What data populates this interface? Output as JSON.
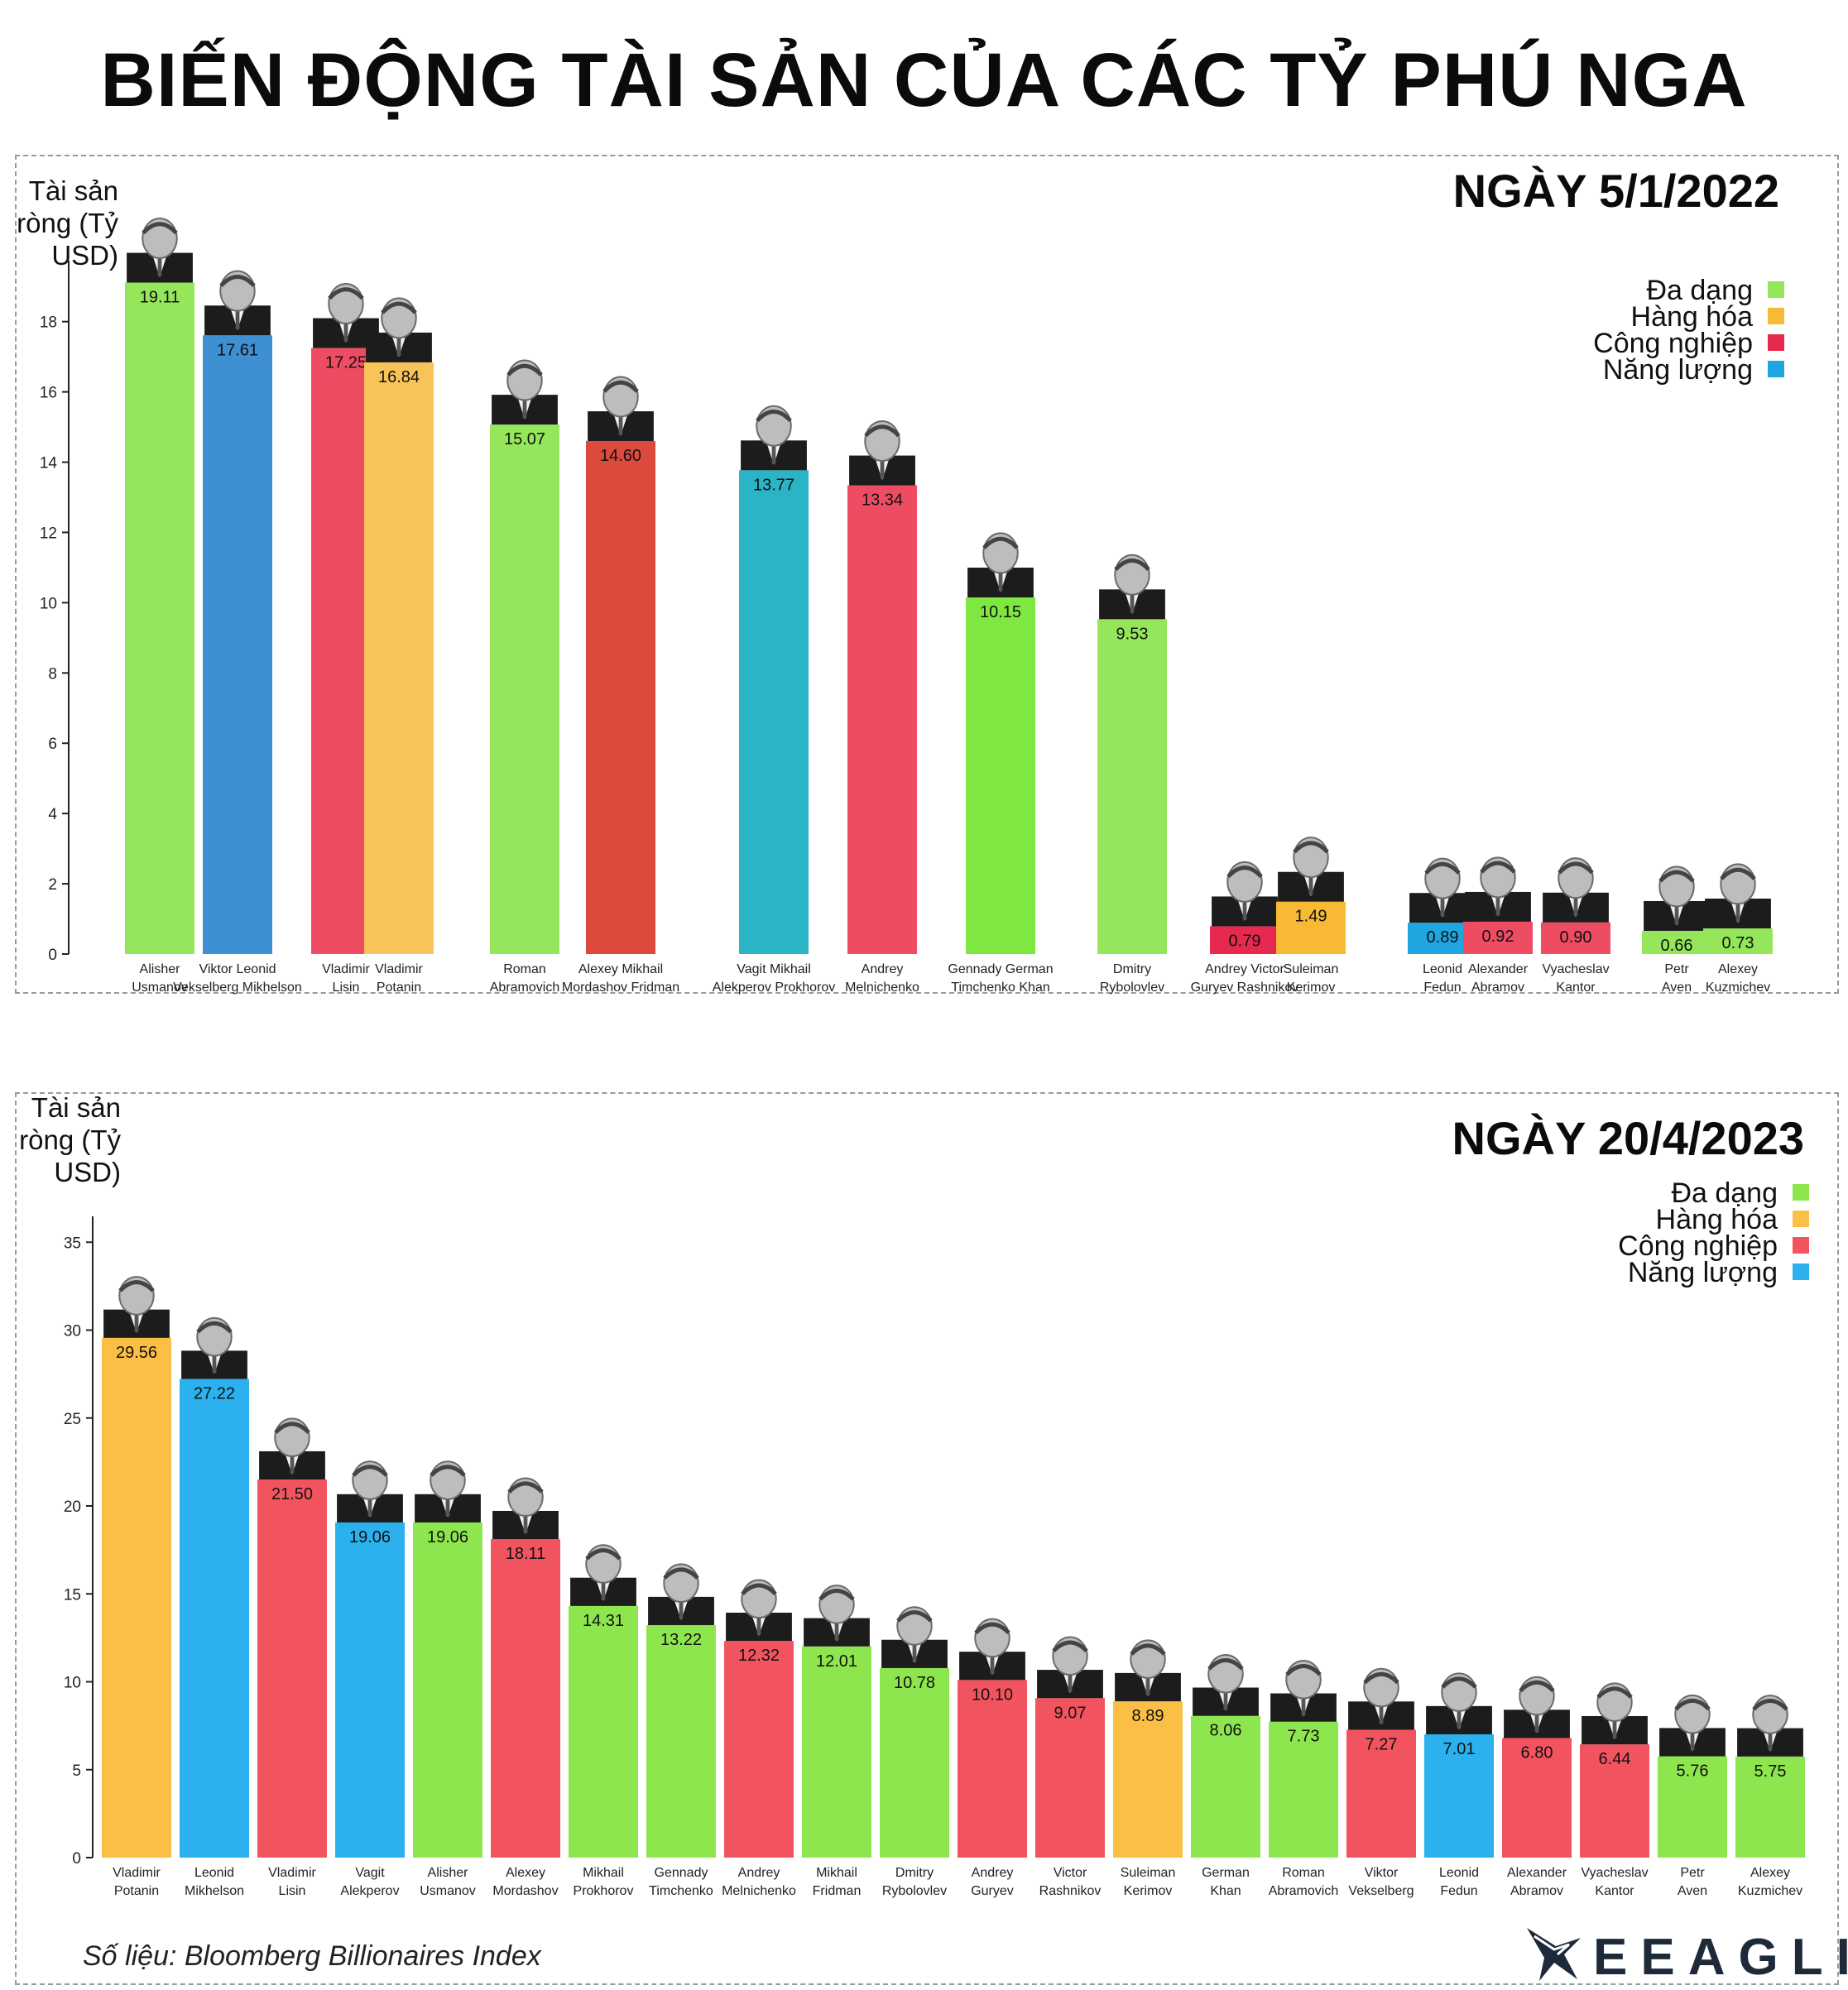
{
  "title": "BIẾN ĐỘNG TÀI SẢN CỦA CÁC TỶ PHÚ NGA",
  "source_note": "Số liệu: Bloomberg Billionaires Index",
  "logo": {
    "text": "EEAGLI",
    "icon": "eagle-logo-icon"
  },
  "colors": {
    "Đa dạng": "#8ee64e",
    "Hàng hóa": "#fbbf45",
    "Công nghiệp": "#f2545f",
    "Năng lượng": "#2cb1ef"
  },
  "legend_colors_panel1": {
    "Đa dạng": "#95e65a",
    "Hàng hóa": "#f8b934",
    "Công nghiệp": "#e8294f",
    "Năng lượng": "#1fa5df"
  },
  "chart_data": [
    {
      "type": "bar",
      "title": "NGÀY 5/1/2022",
      "ylabel": "Tài sản ròng (Tỷ USD)",
      "ylim": [
        0,
        19.5
      ],
      "yticks": [
        0,
        2,
        4,
        6,
        8,
        10,
        12,
        14,
        16,
        18
      ],
      "legend": [
        "Đa dạng",
        "Hàng hóa",
        "Công nghiệp",
        "Năng lượng"
      ],
      "legend_placement": "top-right",
      "grid": false,
      "bars": [
        {
          "name": "Alisher Usmanov",
          "label_lines": [
            "Alisher",
            "Usmanov"
          ],
          "value": 19.11,
          "value_label": "19.11",
          "sector": "Đa dạng",
          "color": "#95e65a"
        },
        {
          "name": "Viktor Vekselberg / Leonid Mikhelson",
          "label_lines": [
            "Viktor Leonid",
            "Vekselberg Mikhelson"
          ],
          "value": 17.61,
          "value_label": "17.61",
          "sector": "Năng lượng",
          "color": "#3f8fd3"
        },
        {
          "name": "Vladimir Lisin",
          "label_lines": [
            "Vladimir",
            "Lisin"
          ],
          "value": 17.25,
          "value_label": "17.25",
          "sector": "Công nghiệp",
          "color": "#ee4c63"
        },
        {
          "name": "Vladimir Potanin",
          "label_lines": [
            "Vladimir",
            "Potanin"
          ],
          "value": 16.84,
          "value_label": "16.84",
          "sector": "Hàng hóa",
          "color": "#f8c358"
        },
        {
          "name": "Roman Abramovich",
          "label_lines": [
            "Roman",
            "Abramovich"
          ],
          "value": 15.07,
          "value_label": "15.07",
          "sector": "Đa dạng",
          "color": "#95e65a"
        },
        {
          "name": "Alexey Mordashov / Mikhail Fridman",
          "label_lines": [
            "Alexey Mikhail",
            "Mordashov Fridman"
          ],
          "value": 14.6,
          "value_label": "14.60",
          "sector": "Công nghiệp",
          "color": "#dc4a3e"
        },
        {
          "name": "Vagit Alekperov / Mikhail Prokhorov",
          "label_lines": [
            "Vagit Mikhail",
            "Alekperov Prokhorov"
          ],
          "value": 13.77,
          "value_label": "13.77",
          "sector": "Năng lượng",
          "color": "#2bb3c6"
        },
        {
          "name": "Andrey Melnichenko",
          "label_lines": [
            "Andrey",
            "Melnichenko"
          ],
          "value": 13.34,
          "value_label": "13.34",
          "sector": "Công nghiệp",
          "color": "#ee4c63"
        },
        {
          "name": "Gennady Timchenko / German Khan",
          "label_lines": [
            "Gennady German",
            "Timchenko Khan"
          ],
          "value": 10.15,
          "value_label": "10.15",
          "sector": "Đa dạng",
          "color": "#7fe840"
        },
        {
          "name": "Dmitry Rybolovlev",
          "label_lines": [
            "Dmitry",
            "Rybolovlev"
          ],
          "value": 9.53,
          "value_label": "9.53",
          "sector": "Đa dạng",
          "color": "#95e65a"
        },
        {
          "name": "Andrey Guryev / Victor Rashnikov",
          "label_lines": [
            "Andrey Victor",
            "Guryev Rashnikov"
          ],
          "value": 0.79,
          "value_label": "0.79",
          "sector": "Công nghiệp",
          "color": "#e8294f"
        },
        {
          "name": "Suleiman Kerimov",
          "label_lines": [
            "Suleiman",
            "Kerimov"
          ],
          "value": 1.49,
          "value_label": "1.49",
          "sector": "Hàng hóa",
          "color": "#f8b934"
        },
        {
          "name": "Leonid Fedun",
          "label_lines": [
            "Leonid",
            "Fedun"
          ],
          "value": 0.89,
          "value_label": "0.89",
          "sector": "Năng lượng",
          "color": "#1fa5df"
        },
        {
          "name": "Alexander Abramov",
          "label_lines": [
            "Alexander",
            "Abramov"
          ],
          "value": 0.92,
          "value_label": "0.92",
          "sector": "Công nghiệp",
          "color": "#ee4c63"
        },
        {
          "name": "Vyacheslav Kantor",
          "label_lines": [
            "Vyacheslav",
            "Kantor"
          ],
          "value": 0.9,
          "value_label": "0.90",
          "sector": "Công nghiệp",
          "color": "#ee4c63"
        },
        {
          "name": "Petr Aven",
          "label_lines": [
            "Petr",
            "Aven"
          ],
          "value": 0.66,
          "value_label": "0.66",
          "sector": "Đa dạng",
          "color": "#95e65a"
        },
        {
          "name": "Alexey Kuzmichev",
          "label_lines": [
            "Alexey",
            "Kuzmichev"
          ],
          "value": 0.73,
          "value_label": "0.73",
          "sector": "Đa dạng",
          "color": "#95e65a"
        }
      ]
    },
    {
      "type": "bar",
      "title": "NGÀY 20/4/2023",
      "ylabel": "Tài sản ròng (Tỷ USD)",
      "ylim": [
        0,
        36
      ],
      "yticks": [
        0,
        5,
        10,
        15,
        20,
        25,
        30,
        35
      ],
      "legend": [
        "Đa dạng",
        "Hàng hóa",
        "Công nghiệp",
        "Năng lượng"
      ],
      "legend_placement": "top-right",
      "grid": false,
      "bars": [
        {
          "name": "Vladimir Potanin",
          "label_lines": [
            "Vladimir",
            "Potanin"
          ],
          "value": 29.56,
          "value_label": "29.56",
          "sector": "Hàng hóa"
        },
        {
          "name": "Leonid Mikhelson",
          "label_lines": [
            "Leonid",
            "Mikhelson"
          ],
          "value": 27.22,
          "value_label": "27.22",
          "sector": "Năng lượng"
        },
        {
          "name": "Vladimir Lisin",
          "label_lines": [
            "Vladimir",
            "Lisin"
          ],
          "value": 21.5,
          "value_label": "21.50",
          "sector": "Công nghiệp"
        },
        {
          "name": "Vagit Alekperov",
          "label_lines": [
            "Vagit",
            "Alekperov"
          ],
          "value": 19.06,
          "value_label": "19.06",
          "sector": "Năng lượng"
        },
        {
          "name": "Alisher Usmanov",
          "label_lines": [
            "Alisher",
            "Usmanov"
          ],
          "value": 19.06,
          "value_label": "19.06",
          "sector": "Đa dạng"
        },
        {
          "name": "Alexey Mordashov",
          "label_lines": [
            "Alexey",
            "Mordashov"
          ],
          "value": 18.11,
          "value_label": "18.11",
          "sector": "Công nghiệp"
        },
        {
          "name": "Mikhail Prokhorov",
          "label_lines": [
            "Mikhail",
            "Prokhorov"
          ],
          "value": 14.31,
          "value_label": "14.31",
          "sector": "Đa dạng"
        },
        {
          "name": "Gennady Timchenko",
          "label_lines": [
            "Gennady",
            "Timchenko"
          ],
          "value": 13.22,
          "value_label": "13.22",
          "sector": "Đa dạng"
        },
        {
          "name": "Andrey Melnichenko",
          "label_lines": [
            "Andrey",
            "Melnichenko"
          ],
          "value": 12.32,
          "value_label": "12.32",
          "sector": "Công nghiệp"
        },
        {
          "name": "Mikhail Fridman",
          "label_lines": [
            "Mikhail",
            "Fridman"
          ],
          "value": 12.01,
          "value_label": "12.01",
          "sector": "Đa dạng"
        },
        {
          "name": "Dmitry Rybolovlev",
          "label_lines": [
            "Dmitry",
            "Rybolovlev"
          ],
          "value": 10.78,
          "value_label": "10.78",
          "sector": "Đa dạng"
        },
        {
          "name": "Andrey Guryev",
          "label_lines": [
            "Andrey",
            "Guryev"
          ],
          "value": 10.1,
          "value_label": "10.10",
          "sector": "Công nghiệp"
        },
        {
          "name": "Victor Rashnikov",
          "label_lines": [
            "Victor",
            "Rashnikov"
          ],
          "value": 9.07,
          "value_label": "9.07",
          "sector": "Công nghiệp"
        },
        {
          "name": "Suleiman Kerimov",
          "label_lines": [
            "Suleiman",
            "Kerimov"
          ],
          "value": 8.89,
          "value_label": "8.89",
          "sector": "Hàng hóa"
        },
        {
          "name": "German Khan",
          "label_lines": [
            "German",
            "Khan"
          ],
          "value": 8.06,
          "value_label": "8.06",
          "sector": "Đa dạng"
        },
        {
          "name": "Roman Abramovich",
          "label_lines": [
            "Roman",
            "Abramovich"
          ],
          "value": 7.73,
          "value_label": "7.73",
          "sector": "Đa dạng"
        },
        {
          "name": "Viktor Vekselberg",
          "label_lines": [
            "Viktor",
            "Vekselberg"
          ],
          "value": 7.27,
          "value_label": "7.27",
          "sector": "Công nghiệp"
        },
        {
          "name": "Leonid Fedun",
          "label_lines": [
            "Leonid",
            "Fedun"
          ],
          "value": 7.01,
          "value_label": "7.01",
          "sector": "Năng lượng"
        },
        {
          "name": "Alexander Abramov",
          "label_lines": [
            "Alexander",
            "Abramov"
          ],
          "value": 6.8,
          "value_label": "6.80",
          "sector": "Công nghiệp"
        },
        {
          "name": "Vyacheslav Kantor",
          "label_lines": [
            "Vyacheslav",
            "Kantor"
          ],
          "value": 6.44,
          "value_label": "6.44",
          "sector": "Công nghiệp"
        },
        {
          "name": "Petr Aven",
          "label_lines": [
            "Petr",
            "Aven"
          ],
          "value": 5.76,
          "value_label": "5.76",
          "sector": "Đa dạng"
        },
        {
          "name": "Alexey Kuzmichev",
          "label_lines": [
            "Alexey",
            "Kuzmichev"
          ],
          "value": 5.75,
          "value_label": "5.75",
          "sector": "Đa dạng"
        }
      ]
    }
  ]
}
